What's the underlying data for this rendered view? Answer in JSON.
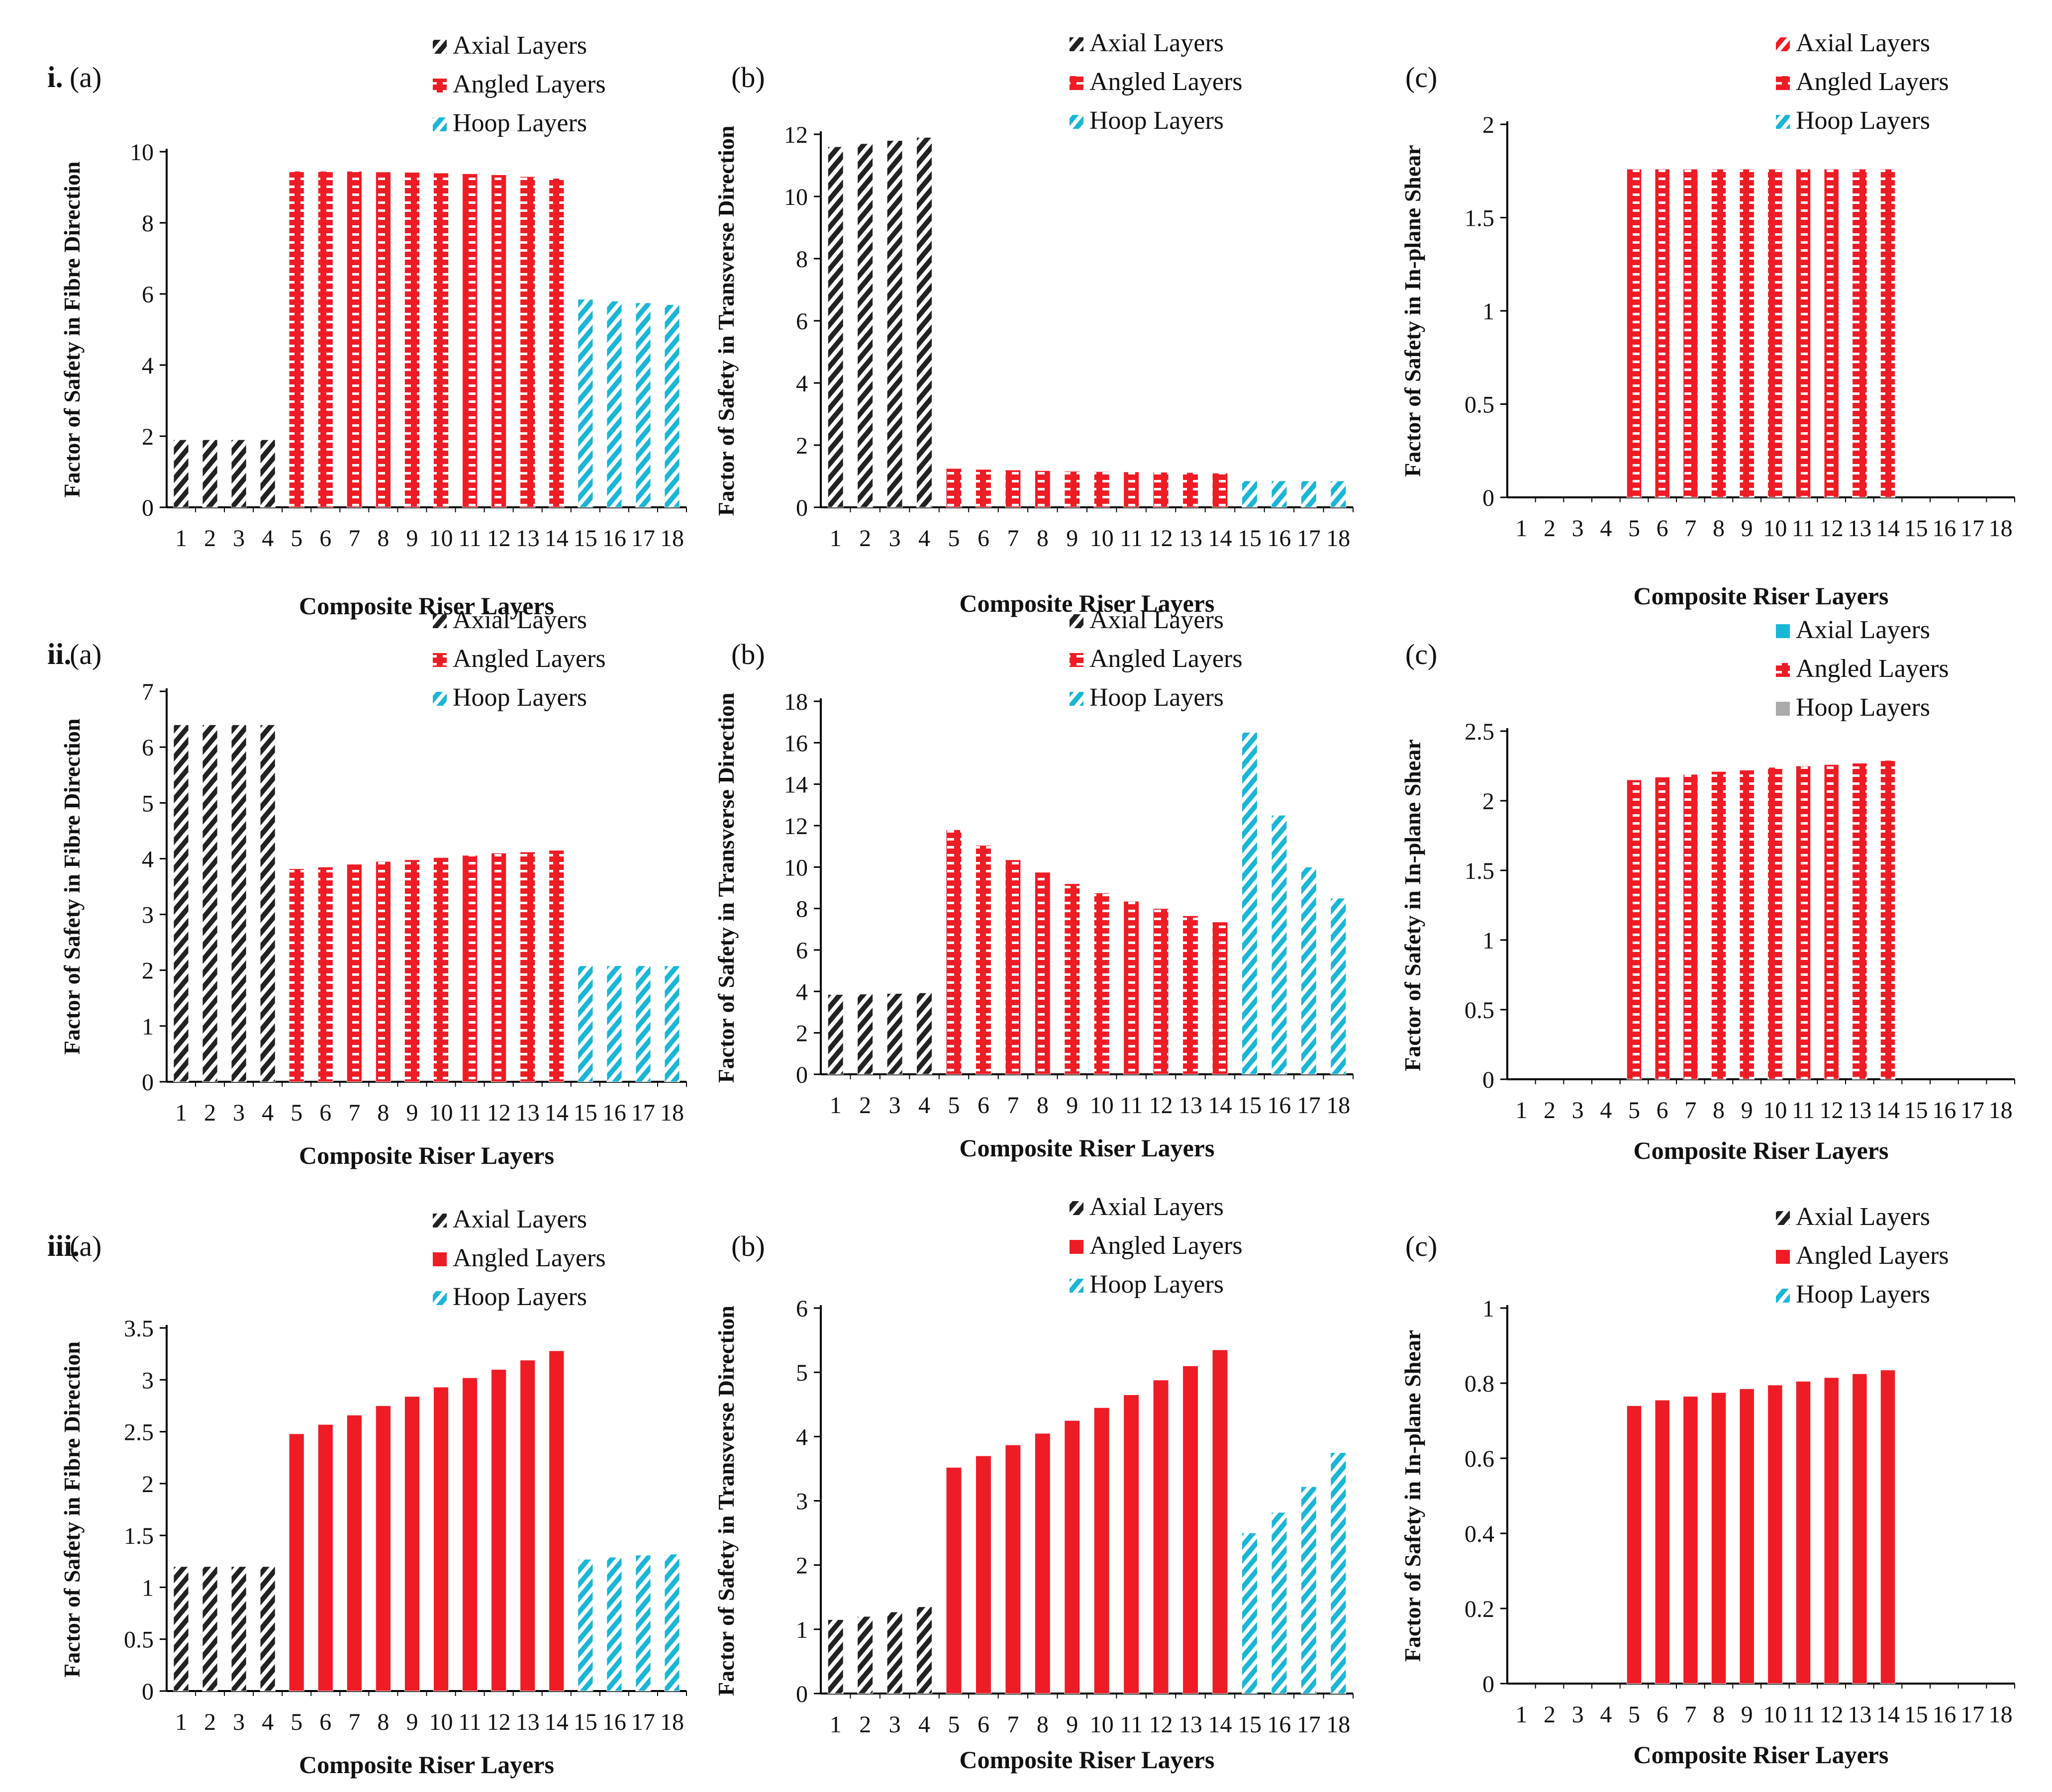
{
  "figure": {
    "row_labels": [
      "i.",
      "ii.",
      "iii."
    ]
  },
  "colors": {
    "axial": "#222222",
    "angled": "#ee1c25",
    "hoop": "#1ab6d6",
    "hoop_grey": "#aaaaaa",
    "axis": "#000000"
  },
  "chart_data": [
    {
      "id": "i-a",
      "row": 0,
      "col": 0,
      "panel_label": "(a)",
      "type": "bar",
      "title": "",
      "xlabel": "Composite Riser Layers",
      "ylabel": "Factor of Safety in Fibre Direction",
      "ylim": [
        0,
        10
      ],
      "yticks": [
        "0",
        "2",
        "4",
        "6",
        "8",
        "10"
      ],
      "categories": [
        "1",
        "2",
        "3",
        "4",
        "5",
        "6",
        "7",
        "8",
        "9",
        "10",
        "11",
        "12",
        "13",
        "14",
        "15",
        "16",
        "17",
        "18"
      ],
      "values": [
        1.9,
        1.9,
        1.9,
        1.9,
        9.45,
        9.45,
        9.45,
        9.43,
        9.42,
        9.4,
        9.38,
        9.35,
        9.3,
        9.25,
        5.85,
        5.8,
        5.75,
        5.7
      ],
      "groups": [
        "axial",
        "axial",
        "axial",
        "axial",
        "angled",
        "angled",
        "angled",
        "angled",
        "angled",
        "angled",
        "angled",
        "angled",
        "angled",
        "angled",
        "hoop",
        "hoop",
        "hoop",
        "hoop"
      ],
      "legend": [
        {
          "label": "Axial Layers",
          "key": "axial",
          "pattern": "diag"
        },
        {
          "label": "Angled Layers",
          "key": "angled",
          "pattern": "grid"
        },
        {
          "label": "Hoop Layers",
          "key": "hoop",
          "pattern": "diag"
        }
      ]
    },
    {
      "id": "i-b",
      "row": 0,
      "col": 1,
      "panel_label": "(b)",
      "type": "bar",
      "title": "",
      "xlabel": "Composite Riser Layers",
      "ylabel": "Factor of Safety in Transverse Direction",
      "ylim": [
        0,
        12
      ],
      "yticks": [
        "0",
        "2",
        "4",
        "6",
        "8",
        "10",
        "12"
      ],
      "categories": [
        "1",
        "2",
        "3",
        "4",
        "5",
        "6",
        "7",
        "8",
        "9",
        "10",
        "11",
        "12",
        "13",
        "14",
        "15",
        "16",
        "17",
        "18"
      ],
      "values": [
        11.6,
        11.7,
        11.8,
        11.9,
        1.25,
        1.22,
        1.2,
        1.18,
        1.16,
        1.15,
        1.14,
        1.13,
        1.12,
        1.1,
        0.85,
        0.85,
        0.85,
        0.85
      ],
      "groups": [
        "axial",
        "axial",
        "axial",
        "axial",
        "angled",
        "angled",
        "angled",
        "angled",
        "angled",
        "angled",
        "angled",
        "angled",
        "angled",
        "angled",
        "hoop",
        "hoop",
        "hoop",
        "hoop"
      ],
      "legend": [
        {
          "label": "Axial Layers",
          "key": "axial",
          "pattern": "diag"
        },
        {
          "label": "Angled Layers",
          "key": "angled",
          "pattern": "grid"
        },
        {
          "label": "Hoop Layers",
          "key": "hoop",
          "pattern": "diag"
        }
      ]
    },
    {
      "id": "i-c",
      "row": 0,
      "col": 2,
      "panel_label": "(c)",
      "type": "bar",
      "title": "",
      "xlabel": "Composite Riser Layers",
      "ylabel": "Factor of Safety in In-plane Shear",
      "ylim": [
        0,
        2
      ],
      "yticks": [
        "0",
        "0.5",
        "1",
        "1.5",
        "2"
      ],
      "categories": [
        "1",
        "2",
        "3",
        "4",
        "5",
        "6",
        "7",
        "8",
        "9",
        "10",
        "11",
        "12",
        "13",
        "14",
        "15",
        "16",
        "17",
        "18"
      ],
      "values": [
        0,
        0,
        0,
        0,
        1.76,
        1.76,
        1.76,
        1.76,
        1.76,
        1.76,
        1.76,
        1.76,
        1.76,
        1.76,
        0,
        0,
        0,
        0
      ],
      "groups": [
        "axial",
        "axial",
        "axial",
        "axial",
        "angled",
        "angled",
        "angled",
        "angled",
        "angled",
        "angled",
        "angled",
        "angled",
        "angled",
        "angled",
        "hoop",
        "hoop",
        "hoop",
        "hoop"
      ],
      "legend": [
        {
          "label": "Axial Layers",
          "key": "angled",
          "pattern": "diag"
        },
        {
          "label": "Angled Layers",
          "key": "angled",
          "pattern": "grid"
        },
        {
          "label": "Hoop Layers",
          "key": "hoop",
          "pattern": "diag"
        }
      ]
    },
    {
      "id": "ii-a",
      "row": 1,
      "col": 0,
      "panel_label": "(a)",
      "type": "bar",
      "title": "",
      "xlabel": "Composite Riser Layers",
      "ylabel": "Factor of Safety in Fibre Direction",
      "ylim": [
        0,
        7
      ],
      "yticks": [
        "0",
        "1",
        "2",
        "3",
        "4",
        "5",
        "6",
        "7"
      ],
      "categories": [
        "1",
        "2",
        "3",
        "4",
        "5",
        "6",
        "7",
        "8",
        "9",
        "10",
        "11",
        "12",
        "13",
        "14",
        "15",
        "16",
        "17",
        "18"
      ],
      "values": [
        6.4,
        6.4,
        6.4,
        6.4,
        3.82,
        3.85,
        3.9,
        3.95,
        3.98,
        4.02,
        4.06,
        4.1,
        4.12,
        4.15,
        2.08,
        2.08,
        2.08,
        2.08
      ],
      "groups": [
        "axial",
        "axial",
        "axial",
        "axial",
        "angled",
        "angled",
        "angled",
        "angled",
        "angled",
        "angled",
        "angled",
        "angled",
        "angled",
        "angled",
        "hoop",
        "hoop",
        "hoop",
        "hoop"
      ],
      "legend": [
        {
          "label": "Axial Layers",
          "key": "axial",
          "pattern": "diag"
        },
        {
          "label": "Angled Layers",
          "key": "angled",
          "pattern": "grid"
        },
        {
          "label": "Hoop Layers",
          "key": "hoop",
          "pattern": "diag"
        }
      ]
    },
    {
      "id": "ii-b",
      "row": 1,
      "col": 1,
      "panel_label": "(b)",
      "type": "bar",
      "title": "",
      "xlabel": "Composite Riser Layers",
      "ylabel": "Factor of Safety in Transverse Direction",
      "ylim": [
        0,
        18
      ],
      "yticks": [
        "0",
        "2",
        "4",
        "6",
        "8",
        "10",
        "12",
        "14",
        "16",
        "18"
      ],
      "categories": [
        "1",
        "2",
        "3",
        "4",
        "5",
        "6",
        "7",
        "8",
        "9",
        "10",
        "11",
        "12",
        "13",
        "14",
        "15",
        "16",
        "17",
        "18"
      ],
      "values": [
        3.85,
        3.87,
        3.9,
        3.93,
        11.8,
        11.05,
        10.35,
        9.75,
        9.2,
        8.75,
        8.35,
        8.0,
        7.65,
        7.35,
        16.5,
        12.5,
        10.0,
        8.5
      ],
      "groups": [
        "axial",
        "axial",
        "axial",
        "axial",
        "angled",
        "angled",
        "angled",
        "angled",
        "angled",
        "angled",
        "angled",
        "angled",
        "angled",
        "angled",
        "hoop",
        "hoop",
        "hoop",
        "hoop"
      ],
      "legend": [
        {
          "label": "Axial Layers",
          "key": "axial",
          "pattern": "diag"
        },
        {
          "label": "Angled Layers",
          "key": "angled",
          "pattern": "grid"
        },
        {
          "label": "Hoop Layers",
          "key": "hoop",
          "pattern": "diag"
        }
      ]
    },
    {
      "id": "ii-c",
      "row": 1,
      "col": 2,
      "panel_label": "(c)",
      "type": "bar",
      "title": "",
      "xlabel": "Composite Riser Layers",
      "ylabel": "Factor of Safety in In-plane Shear",
      "ylim": [
        0,
        2.5
      ],
      "yticks": [
        "0",
        "0.5",
        "1",
        "1.5",
        "2",
        "2.5"
      ],
      "categories": [
        "1",
        "2",
        "3",
        "4",
        "5",
        "6",
        "7",
        "8",
        "9",
        "10",
        "11",
        "12",
        "13",
        "14",
        "15",
        "16",
        "17",
        "18"
      ],
      "values": [
        0,
        0,
        0,
        0,
        2.15,
        2.17,
        2.19,
        2.21,
        2.22,
        2.24,
        2.25,
        2.26,
        2.27,
        2.29,
        0,
        0,
        0,
        0
      ],
      "groups": [
        "axial",
        "axial",
        "axial",
        "axial",
        "angled",
        "angled",
        "angled",
        "angled",
        "angled",
        "angled",
        "angled",
        "angled",
        "angled",
        "angled",
        "hoop",
        "hoop",
        "hoop",
        "hoop"
      ],
      "legend": [
        {
          "label": "Axial Layers",
          "key": "hoop",
          "pattern": "solid"
        },
        {
          "label": "Angled Layers",
          "key": "angled",
          "pattern": "grid"
        },
        {
          "label": "Hoop Layers",
          "key": "hoop_grey",
          "pattern": "solid"
        }
      ]
    },
    {
      "id": "iii-a",
      "row": 2,
      "col": 0,
      "panel_label": "(a)",
      "type": "bar",
      "title": "",
      "xlabel": "Composite Riser Layers",
      "ylabel": "Factor of Safety in Fibre Direction",
      "ylim": [
        0,
        3.5
      ],
      "yticks": [
        "0",
        "0.5",
        "1",
        "1.5",
        "2",
        "2.5",
        "3",
        "3.5"
      ],
      "categories": [
        "1",
        "2",
        "3",
        "4",
        "5",
        "6",
        "7",
        "8",
        "9",
        "10",
        "11",
        "12",
        "13",
        "14",
        "15",
        "16",
        "17",
        "18"
      ],
      "values": [
        1.2,
        1.2,
        1.2,
        1.2,
        2.48,
        2.57,
        2.66,
        2.75,
        2.84,
        2.93,
        3.02,
        3.1,
        3.19,
        3.28,
        1.27,
        1.29,
        1.31,
        1.32
      ],
      "groups": [
        "axial",
        "axial",
        "axial",
        "axial",
        "angled",
        "angled",
        "angled",
        "angled",
        "angled",
        "angled",
        "angled",
        "angled",
        "angled",
        "angled",
        "hoop",
        "hoop",
        "hoop",
        "hoop"
      ],
      "legend": [
        {
          "label": "Axial Layers",
          "key": "axial",
          "pattern": "diag"
        },
        {
          "label": "Angled Layers",
          "key": "angled",
          "pattern": "solid"
        },
        {
          "label": "Hoop Layers",
          "key": "hoop",
          "pattern": "diag"
        }
      ]
    },
    {
      "id": "iii-b",
      "row": 2,
      "col": 1,
      "panel_label": "(b)",
      "type": "bar",
      "title": "",
      "xlabel": "Composite Riser Layers",
      "ylabel": "Factor of Safety in Transverse Direction",
      "ylim": [
        0,
        6
      ],
      "yticks": [
        "0",
        "1",
        "2",
        "3",
        "4",
        "5",
        "6"
      ],
      "categories": [
        "1",
        "2",
        "3",
        "4",
        "5",
        "6",
        "7",
        "8",
        "9",
        "10",
        "11",
        "12",
        "13",
        "14",
        "15",
        "16",
        "17",
        "18"
      ],
      "values": [
        1.15,
        1.2,
        1.27,
        1.35,
        3.52,
        3.7,
        3.87,
        4.05,
        4.25,
        4.45,
        4.65,
        4.88,
        5.1,
        5.35,
        2.5,
        2.82,
        3.22,
        3.75
      ],
      "groups": [
        "axial",
        "axial",
        "axial",
        "axial",
        "angled",
        "angled",
        "angled",
        "angled",
        "angled",
        "angled",
        "angled",
        "angled",
        "angled",
        "angled",
        "hoop",
        "hoop",
        "hoop",
        "hoop"
      ],
      "legend": [
        {
          "label": "Axial Layers",
          "key": "axial",
          "pattern": "diag"
        },
        {
          "label": "Angled Layers",
          "key": "angled",
          "pattern": "solid"
        },
        {
          "label": "Hoop Layers",
          "key": "hoop",
          "pattern": "diag"
        }
      ]
    },
    {
      "id": "iii-c",
      "row": 2,
      "col": 2,
      "panel_label": "(c)",
      "type": "bar",
      "title": "",
      "xlabel": "Composite Riser Layers",
      "ylabel": "Factor of Safety in In-plane Shear",
      "ylim": [
        0,
        1
      ],
      "yticks": [
        "0",
        "0.2",
        "0.4",
        "0.6",
        "0.8",
        "1"
      ],
      "categories": [
        "1",
        "2",
        "3",
        "4",
        "5",
        "6",
        "7",
        "8",
        "9",
        "10",
        "11",
        "12",
        "13",
        "14",
        "15",
        "16",
        "17",
        "18"
      ],
      "values": [
        0,
        0,
        0,
        0,
        0.74,
        0.755,
        0.765,
        0.775,
        0.785,
        0.795,
        0.805,
        0.815,
        0.825,
        0.835,
        0,
        0,
        0,
        0
      ],
      "groups": [
        "axial",
        "axial",
        "axial",
        "axial",
        "angled",
        "angled",
        "angled",
        "angled",
        "angled",
        "angled",
        "angled",
        "angled",
        "angled",
        "angled",
        "hoop",
        "hoop",
        "hoop",
        "hoop"
      ],
      "legend": [
        {
          "label": "Axial Layers",
          "key": "axial",
          "pattern": "diag"
        },
        {
          "label": "Angled Layers",
          "key": "angled",
          "pattern": "solid"
        },
        {
          "label": "Hoop Layers",
          "key": "hoop",
          "pattern": "diag"
        }
      ]
    }
  ]
}
